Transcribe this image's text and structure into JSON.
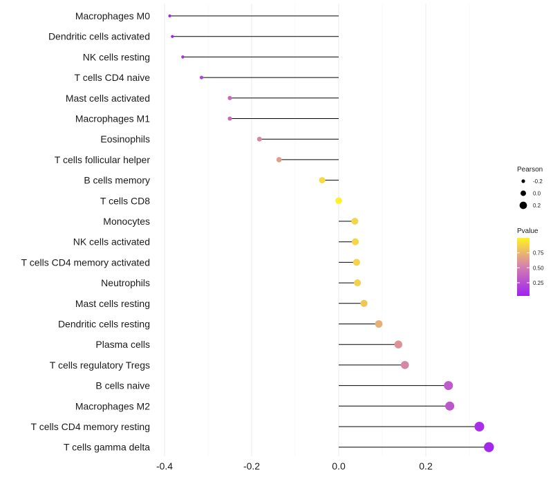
{
  "chart_data": {
    "type": "lollipop",
    "title": "",
    "xlabel": "",
    "ylabel": "",
    "xlim": [
      -0.4,
      0.35
    ],
    "xticks": [
      -0.4,
      -0.2,
      0.0,
      0.2
    ],
    "xtick_labels": [
      "-0.4",
      "-0.2",
      "0.0",
      "0.2"
    ],
    "grid": true,
    "categories": [
      "Macrophages M0",
      "Dendritic cells activated",
      "NK cells resting",
      "T cells CD4 naive",
      "Mast cells activated",
      "Macrophages M1",
      "Eosinophils",
      "T cells follicular helper",
      "B cells memory",
      "T cells CD8",
      "Monocytes",
      "NK cells activated",
      "T cells CD4 memory activated",
      "Neutrophils",
      "Mast cells resting",
      "Dendritic cells resting",
      "Plasma cells",
      "T cells regulatory  Tregs ",
      "B cells naive",
      "Macrophages M2",
      "T cells CD4 memory resting",
      "T cells gamma delta"
    ],
    "pearson": [
      -0.388,
      -0.382,
      -0.358,
      -0.315,
      -0.25,
      -0.25,
      -0.182,
      -0.137,
      -0.038,
      0.0,
      0.037,
      0.038,
      0.041,
      0.043,
      0.058,
      0.092,
      0.137,
      0.152,
      0.252,
      0.255,
      0.323,
      0.345
    ],
    "pvalue": [
      0.04,
      0.05,
      0.12,
      0.2,
      0.4,
      0.4,
      0.55,
      0.65,
      0.9,
      0.99,
      0.88,
      0.88,
      0.87,
      0.86,
      0.82,
      0.72,
      0.6,
      0.55,
      0.32,
      0.3,
      0.1,
      0.06
    ],
    "color_scale": {
      "low": "#9e22f0",
      "mid": "#d47fb0",
      "high": "#fff226"
    },
    "legend": {
      "position": "right",
      "size_title": "Pearson",
      "size_labels": [
        "-0.2",
        "0.0",
        "0.2"
      ],
      "size_values": [
        -0.2,
        0.0,
        0.2
      ],
      "color_title": "Pvalue",
      "color_labels": [
        "0.75",
        "0.50",
        "0.25"
      ],
      "color_values": [
        0.75,
        0.5,
        0.25
      ],
      "color_range": [
        0.03,
        1.0
      ]
    }
  }
}
